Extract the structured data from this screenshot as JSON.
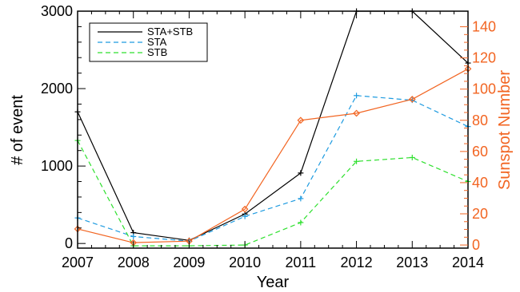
{
  "chart_data": {
    "type": "line",
    "x": [
      2007,
      2008,
      2009,
      2010,
      2011,
      2012,
      2013,
      2014
    ],
    "xlabel": "Year",
    "ylabel_left": "# of event",
    "ylabel_right": "Sunspot Number",
    "xlim": [
      2007,
      2014
    ],
    "ylim_left": [
      -60,
      3000
    ],
    "ylim_right": [
      -2,
      150
    ],
    "xticks": [
      "2007",
      "2008",
      "2009",
      "2010",
      "2011",
      "2012",
      "2013",
      "2014"
    ],
    "yticks_left": [
      "0",
      "1000",
      "2000",
      "3000"
    ],
    "yticks_right": [
      "0",
      "20",
      "40",
      "60",
      "80",
      "100",
      "120",
      "140"
    ],
    "left_axis_color": "#000000",
    "right_axis_color": "#f26522",
    "grid": false,
    "legend_position": "top-left",
    "series": [
      {
        "name": "STA+STB",
        "axis": "left",
        "color": "#000000",
        "dash": "solid",
        "marker": "plus",
        "values": [
          1700,
          140,
          40,
          380,
          910,
          3000,
          3000,
          2330
        ]
      },
      {
        "name": "STA",
        "axis": "left",
        "color": "#1e9be0",
        "dash": "dashed",
        "marker": "plus",
        "values": [
          330,
          90,
          30,
          350,
          580,
          1910,
          1850,
          1510
        ]
      },
      {
        "name": "STB",
        "axis": "left",
        "color": "#2ee02e",
        "dash": "dashed",
        "marker": "plus",
        "values": [
          1330,
          -30,
          -30,
          -20,
          270,
          1060,
          1110,
          800
        ]
      },
      {
        "name": "",
        "axis": "right",
        "color": "#f26522",
        "dash": "solid",
        "marker": "diamond",
        "values": [
          10.3,
          1.5,
          2.5,
          23,
          80,
          84.5,
          93.5,
          113
        ]
      }
    ]
  }
}
